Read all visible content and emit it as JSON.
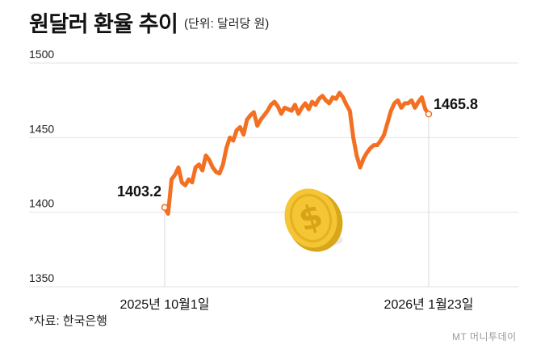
{
  "title": "원달러 환율 추이",
  "subtitle": "(단위: 달러당 원)",
  "source": "*자료: 한국은행",
  "watermark": "MT 머니투데이",
  "colors": {
    "line": "#f36f21",
    "grid": "#e2e2e2",
    "text": "#111111",
    "coin": "#f2c230"
  },
  "icons": [
    "dollar-coin-icon"
  ],
  "chart_data": {
    "type": "line",
    "title": "원달러 환율 추이",
    "subtitle": "(단위: 달러당 원)",
    "ylim": [
      1350,
      1500
    ],
    "y_ticks": [
      1500,
      1450,
      1400,
      1350
    ],
    "x_tick_labels": [
      "2025년 10월1일",
      "2026년 1월23일"
    ],
    "x_label_indices": [
      0,
      77
    ],
    "grid": true,
    "annotations": [
      {
        "label": "1403.2",
        "index": 0
      },
      {
        "label": "1465.8",
        "index": 77
      }
    ],
    "series": [
      {
        "values": [
          1403.2,
          1399,
          1422,
          1425,
          1430,
          1420,
          1418,
          1422,
          1420,
          1430,
          1432,
          1428,
          1438,
          1435,
          1430,
          1427,
          1426,
          1432,
          1443,
          1450,
          1448,
          1455,
          1457,
          1452,
          1462,
          1465,
          1467,
          1458,
          1462,
          1465,
          1468,
          1472,
          1474,
          1471,
          1466,
          1470,
          1469,
          1468,
          1472,
          1466,
          1470,
          1473,
          1469,
          1474,
          1472,
          1476,
          1478,
          1475,
          1473,
          1477,
          1476,
          1480,
          1477,
          1472,
          1468,
          1450,
          1438,
          1430,
          1436,
          1440,
          1443,
          1445,
          1445,
          1448,
          1452,
          1460,
          1468,
          1473,
          1475,
          1470,
          1473,
          1473,
          1475,
          1470,
          1474,
          1477,
          1469,
          1465.8
        ]
      }
    ]
  }
}
